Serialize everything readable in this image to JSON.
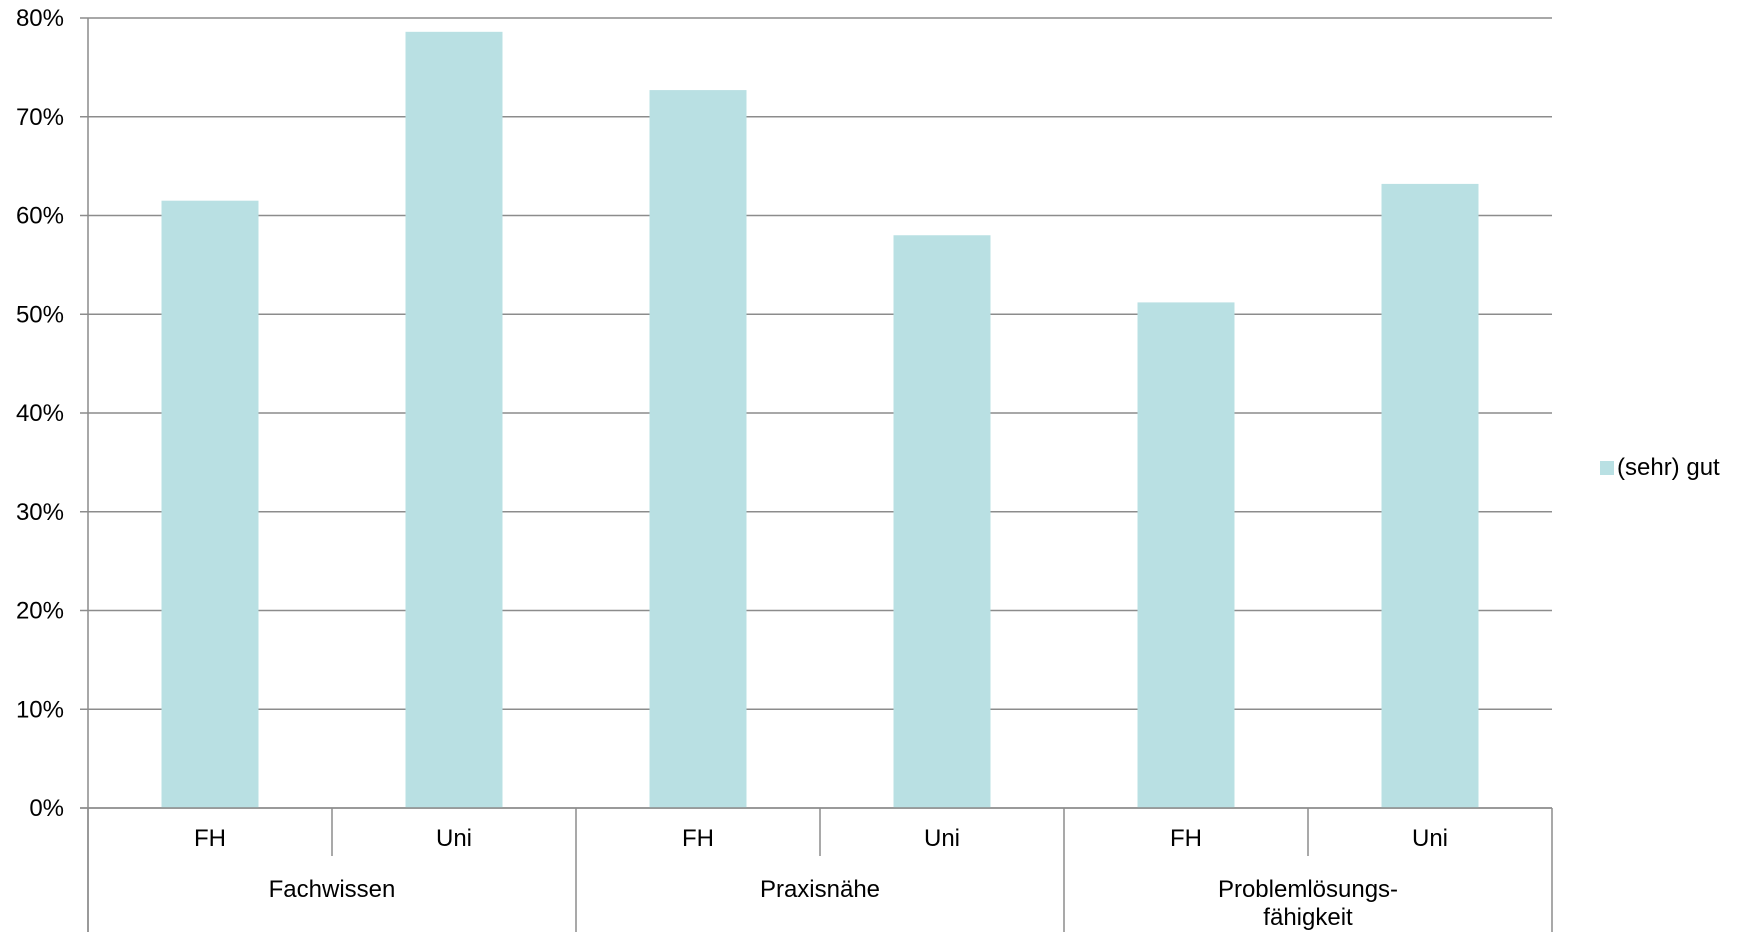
{
  "chart_data": {
    "type": "bar",
    "title": "",
    "xlabel": "",
    "ylabel": "",
    "ylim": [
      0,
      0.8
    ],
    "yticks": [
      "0%",
      "10%",
      "20%",
      "30%",
      "40%",
      "50%",
      "60%",
      "70%",
      "80%"
    ],
    "grid": true,
    "legend_position": "right",
    "groups": [
      {
        "label": "Fachwissen",
        "lines": [
          "Fachwissen"
        ],
        "categories": [
          "FH",
          "Uni"
        ]
      },
      {
        "label": "Praxisnähe",
        "lines": [
          "Praxisnähe"
        ],
        "categories": [
          "FH",
          "Uni"
        ]
      },
      {
        "label": "Problemlösungs-fähigkeit",
        "lines": [
          "Problemlösungs-",
          "fähigkeit"
        ],
        "categories": [
          "FH",
          "Uni"
        ]
      }
    ],
    "categories": [
      "FH",
      "Uni",
      "FH",
      "Uni",
      "FH",
      "Uni"
    ],
    "series": [
      {
        "name": "(sehr) gut",
        "color": "#b9e0e3",
        "values": [
          0.615,
          0.786,
          0.727,
          0.58,
          0.512,
          0.632
        ]
      }
    ]
  }
}
